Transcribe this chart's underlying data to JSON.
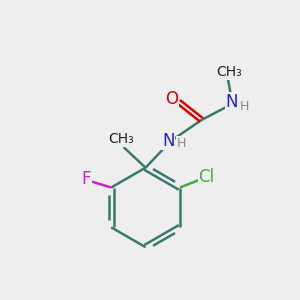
{
  "bg_color": "#eeeeee",
  "bond_color": "#3a7a6a",
  "bond_width": 1.8,
  "atom_colors": {
    "O": "#dd0000",
    "N": "#2222cc",
    "Cl": "#44aa44",
    "F": "#cc22cc",
    "H": "#888888",
    "C": "#222222"
  },
  "font_size_main": 12,
  "font_size_small": 9,
  "font_size_methyl": 10
}
